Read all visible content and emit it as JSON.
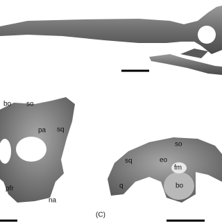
{
  "panel_c": {
    "label": "(C)",
    "left_specimen_labels": [
      "bo",
      "so",
      "pa",
      "sq",
      "pfr",
      "na"
    ],
    "right_specimen_labels": [
      "so",
      "sq",
      "eo",
      "fm",
      "q",
      "bo"
    ]
  }
}
